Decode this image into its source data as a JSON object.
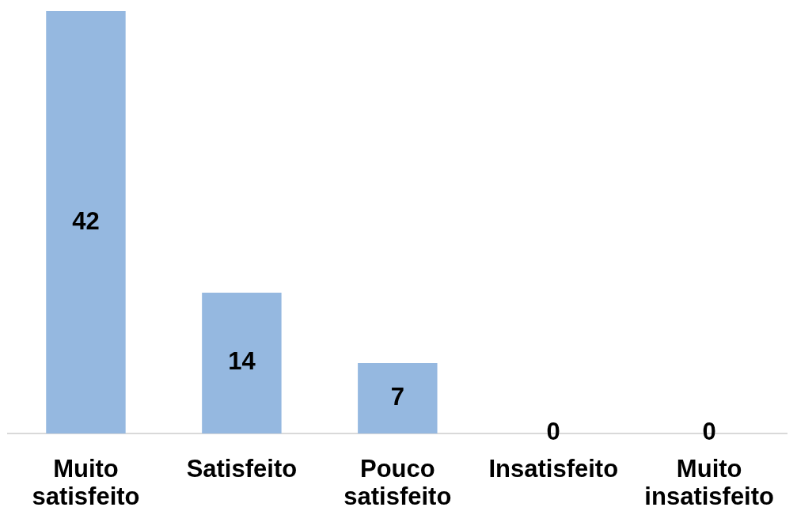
{
  "chart_data": {
    "type": "bar",
    "categories": [
      "Muito satisfeito",
      "Satisfeito",
      "Pouco satisfeito",
      "Insatisfeito",
      "Muito insatisfeito"
    ],
    "values": [
      42,
      14,
      7,
      0,
      0
    ],
    "color": "#95b8e0",
    "data_labels": true,
    "tick_labels": "x"
  }
}
